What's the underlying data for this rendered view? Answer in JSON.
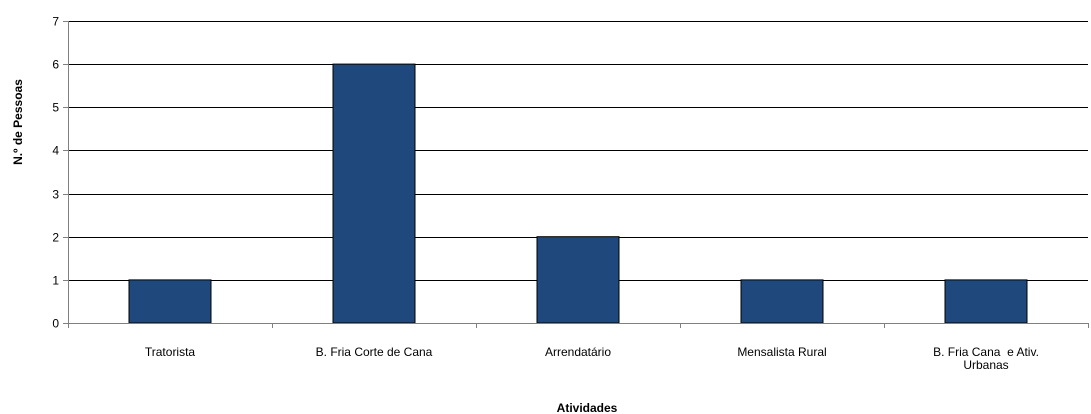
{
  "chart_data": {
    "type": "bar",
    "categories": [
      "Tratorista",
      "B. Fria Corte de Cana",
      "Arrendatário",
      "Mensalista Rural",
      "B. Fria Cana  e Ativ. Urbanas"
    ],
    "category_lines": [
      [
        "Tratorista"
      ],
      [
        "B. Fria Corte de Cana"
      ],
      [
        "Arrendatário"
      ],
      [
        "Mensalista Rural"
      ],
      [
        "B. Fria Cana  e Ativ.",
        "Urbanas"
      ]
    ],
    "values": [
      1,
      6,
      2,
      1,
      1
    ],
    "title": "",
    "xlabel": "Atividades",
    "ylabel": "N.º de Pessoas",
    "ylim": [
      0,
      7
    ],
    "yticks": [
      0,
      1,
      2,
      3,
      4,
      5,
      6,
      7
    ],
    "grid": "horizontal",
    "legend": "none",
    "colors": {
      "bar": "#1F497D",
      "bar_border": "#000000",
      "grid": "#000000",
      "axis": "#808080"
    }
  }
}
